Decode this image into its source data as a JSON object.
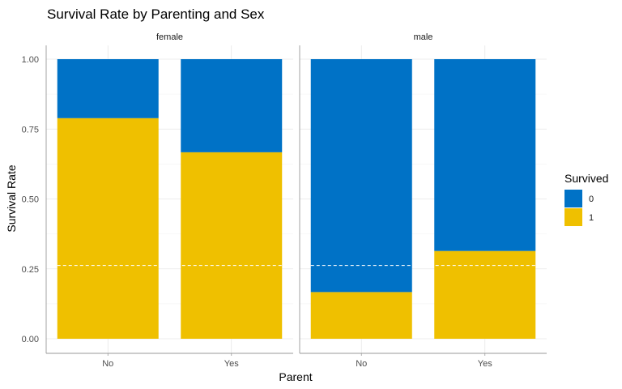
{
  "chart_data": {
    "type": "bar",
    "stacked": true,
    "title": "Survival Rate by Parenting and Sex",
    "xlabel": "Parent",
    "ylabel": "Survival Rate",
    "ylim": [
      0,
      1
    ],
    "yticks": [
      "0.00",
      "0.25",
      "0.50",
      "0.75",
      "1.00"
    ],
    "grid": true,
    "legend_position": "right",
    "legend_title": "Survived",
    "reference_line": 0.262,
    "facets": [
      {
        "name": "female",
        "categories": [
          "No",
          "Yes"
        ],
        "series": [
          {
            "name": "0",
            "values": [
              0.211,
              0.333
            ]
          },
          {
            "name": "1",
            "values": [
              0.789,
              0.667
            ]
          }
        ]
      },
      {
        "name": "male",
        "categories": [
          "No",
          "Yes"
        ],
        "series": [
          {
            "name": "0",
            "values": [
              0.833,
              0.686
            ]
          },
          {
            "name": "1",
            "values": [
              0.167,
              0.314
            ]
          }
        ]
      }
    ],
    "colors": {
      "0": "#0072C6",
      "1": "#EFC000"
    }
  }
}
